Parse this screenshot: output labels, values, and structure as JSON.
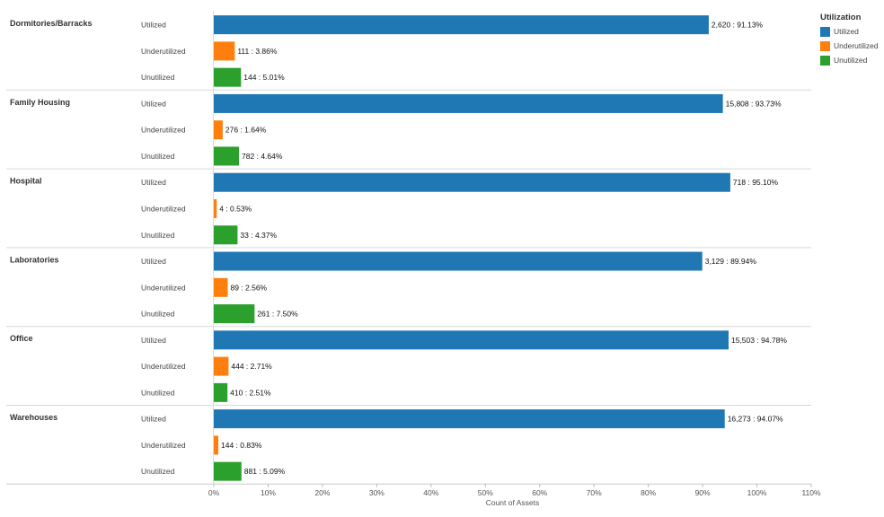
{
  "chart_data": {
    "type": "bar",
    "orientation": "horizontal",
    "xlabel": "Count of Assets",
    "xlim": [
      0,
      110
    ],
    "x_ticks": [
      "0%",
      "10%",
      "20%",
      "30%",
      "40%",
      "50%",
      "60%",
      "70%",
      "80%",
      "90%",
      "100%",
      "110%"
    ],
    "legend_title": "Utilization",
    "legend_position": "top-right",
    "grid": false,
    "series": [
      {
        "name": "Utilized",
        "color": "#1f77b4"
      },
      {
        "name": "Underutilized",
        "color": "#ff7f0e"
      },
      {
        "name": "Unutilized",
        "color": "#2ca02c"
      }
    ],
    "groups": [
      {
        "name": "Dormitories/Barracks",
        "rows": [
          {
            "status": "Utilized",
            "count": "2,620",
            "pct": 91.13,
            "label": "2,620 : 91.13%"
          },
          {
            "status": "Underutilized",
            "count": "111",
            "pct": 3.86,
            "label": "111 : 3.86%"
          },
          {
            "status": "Unutilized",
            "count": "144",
            "pct": 5.01,
            "label": "144 : 5.01%"
          }
        ]
      },
      {
        "name": "Family Housing",
        "rows": [
          {
            "status": "Utilized",
            "count": "15,808",
            "pct": 93.73,
            "label": "15,808 : 93.73%"
          },
          {
            "status": "Underutilized",
            "count": "276",
            "pct": 1.64,
            "label": "276 : 1.64%"
          },
          {
            "status": "Unutilized",
            "count": "782",
            "pct": 4.64,
            "label": "782 : 4.64%"
          }
        ]
      },
      {
        "name": "Hospital",
        "rows": [
          {
            "status": "Utilized",
            "count": "718",
            "pct": 95.1,
            "label": "718 : 95.10%"
          },
          {
            "status": "Underutilized",
            "count": "4",
            "pct": 0.53,
            "label": "4 : 0.53%"
          },
          {
            "status": "Unutilized",
            "count": "33",
            "pct": 4.37,
            "label": "33 : 4.37%"
          }
        ]
      },
      {
        "name": "Laboratories",
        "rows": [
          {
            "status": "Utilized",
            "count": "3,129",
            "pct": 89.94,
            "label": "3,129 : 89.94%"
          },
          {
            "status": "Underutilized",
            "count": "89",
            "pct": 2.56,
            "label": "89 : 2.56%"
          },
          {
            "status": "Unutilized",
            "count": "261",
            "pct": 7.5,
            "label": "261 : 7.50%"
          }
        ]
      },
      {
        "name": "Office",
        "rows": [
          {
            "status": "Utilized",
            "count": "15,503",
            "pct": 94.78,
            "label": "15,503 : 94.78%"
          },
          {
            "status": "Underutilized",
            "count": "444",
            "pct": 2.71,
            "label": "444 : 2.71%"
          },
          {
            "status": "Unutilized",
            "count": "410",
            "pct": 2.51,
            "label": "410 : 2.51%"
          }
        ]
      },
      {
        "name": "Warehouses",
        "rows": [
          {
            "status": "Utilized",
            "count": "16,273",
            "pct": 94.07,
            "label": "16,273 : 94.07%"
          },
          {
            "status": "Underutilized",
            "count": "144",
            "pct": 0.83,
            "label": "144 : 0.83%"
          },
          {
            "status": "Unutilized",
            "count": "881",
            "pct": 5.09,
            "label": "881 : 5.09%"
          }
        ]
      }
    ]
  }
}
